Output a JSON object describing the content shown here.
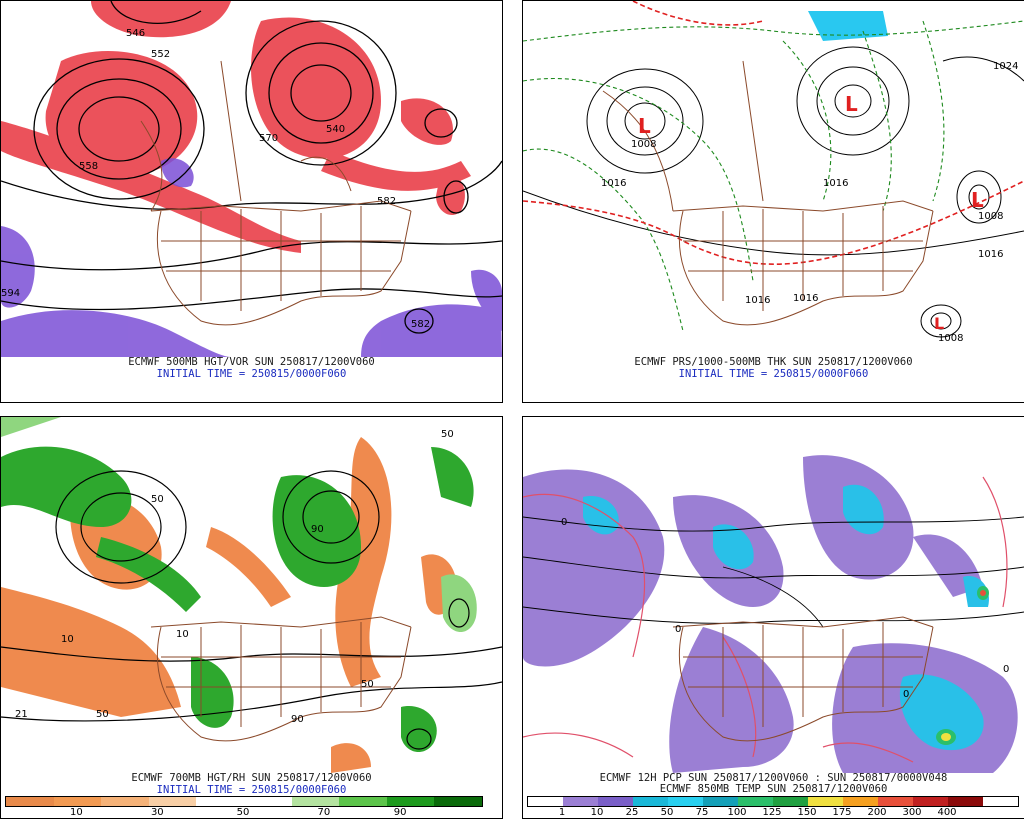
{
  "panels": [
    {
      "id": "p1",
      "caption1": "ECMWF 500MB HGT/VOR SUN 250817/1200V060",
      "caption2": "INITIAL TIME = 250815/0000F060",
      "contour_labels": [
        "546",
        "558",
        "570",
        "582",
        "594",
        "552",
        "540",
        "582"
      ],
      "colors": {
        "vorticity": "#e8343f",
        "low_vort": "#7b4fd6",
        "contour": "#000000",
        "border": "#8b4a2b"
      }
    },
    {
      "id": "p2",
      "caption1": "ECMWF PRS/1000-500MB THK SUN 250817/1200V060",
      "caption2": "INITIAL TIME = 250815/0000F060",
      "contour_labels": [
        "1008",
        "1016",
        "1024",
        "1016",
        "1008",
        "1016",
        "1016",
        "1008",
        "1016"
      ],
      "low_symbol": "L",
      "colors": {
        "isobar": "#000000",
        "thickness": "#1e8a1e",
        "thickness_warm": "#e02020",
        "low": "#e02020"
      }
    },
    {
      "id": "p3",
      "caption1": "ECMWF 700MB HGT/RH SUN 250817/1200V060",
      "caption2": "INITIAL TIME = 250815/0000F060",
      "contour_labels": [
        "10",
        "50",
        "90",
        "50",
        "10",
        "90",
        "50",
        "21",
        "50"
      ],
      "colorbar": {
        "colors": [
          "#e88a4a",
          "#f29a52",
          "#f5b278",
          "#f8cfa6",
          "#ffffff",
          "#ffffff",
          "#b4e3a0",
          "#5cc44a",
          "#1d9a1d",
          "#0a6a0a"
        ],
        "ticks": [
          "10",
          "30",
          "50",
          "70",
          "90"
        ]
      }
    },
    {
      "id": "p4",
      "caption1": "ECMWF 12H PCP SUN 250817/1200V060 : SUN 250817/0000V048",
      "caption2": "ECMWF 850MB TEMP SUN 250817/1200V060",
      "contour_labels": [
        "0",
        "0",
        "0",
        "0"
      ],
      "colorbar": {
        "colors": [
          "#ffffff",
          "#9b7fd4",
          "#7a5fc8",
          "#1ab8d8",
          "#29d0f0",
          "#14a0b8",
          "#2bbf6a",
          "#20a040",
          "#f0e040",
          "#f5a020",
          "#e8503a",
          "#c02020",
          "#8b0a0a",
          "#ffffff"
        ],
        "ticks": [
          "1",
          "10",
          "25",
          "50",
          "75",
          "100",
          "125",
          "150",
          "175",
          "200",
          "300",
          "400"
        ]
      }
    }
  ]
}
